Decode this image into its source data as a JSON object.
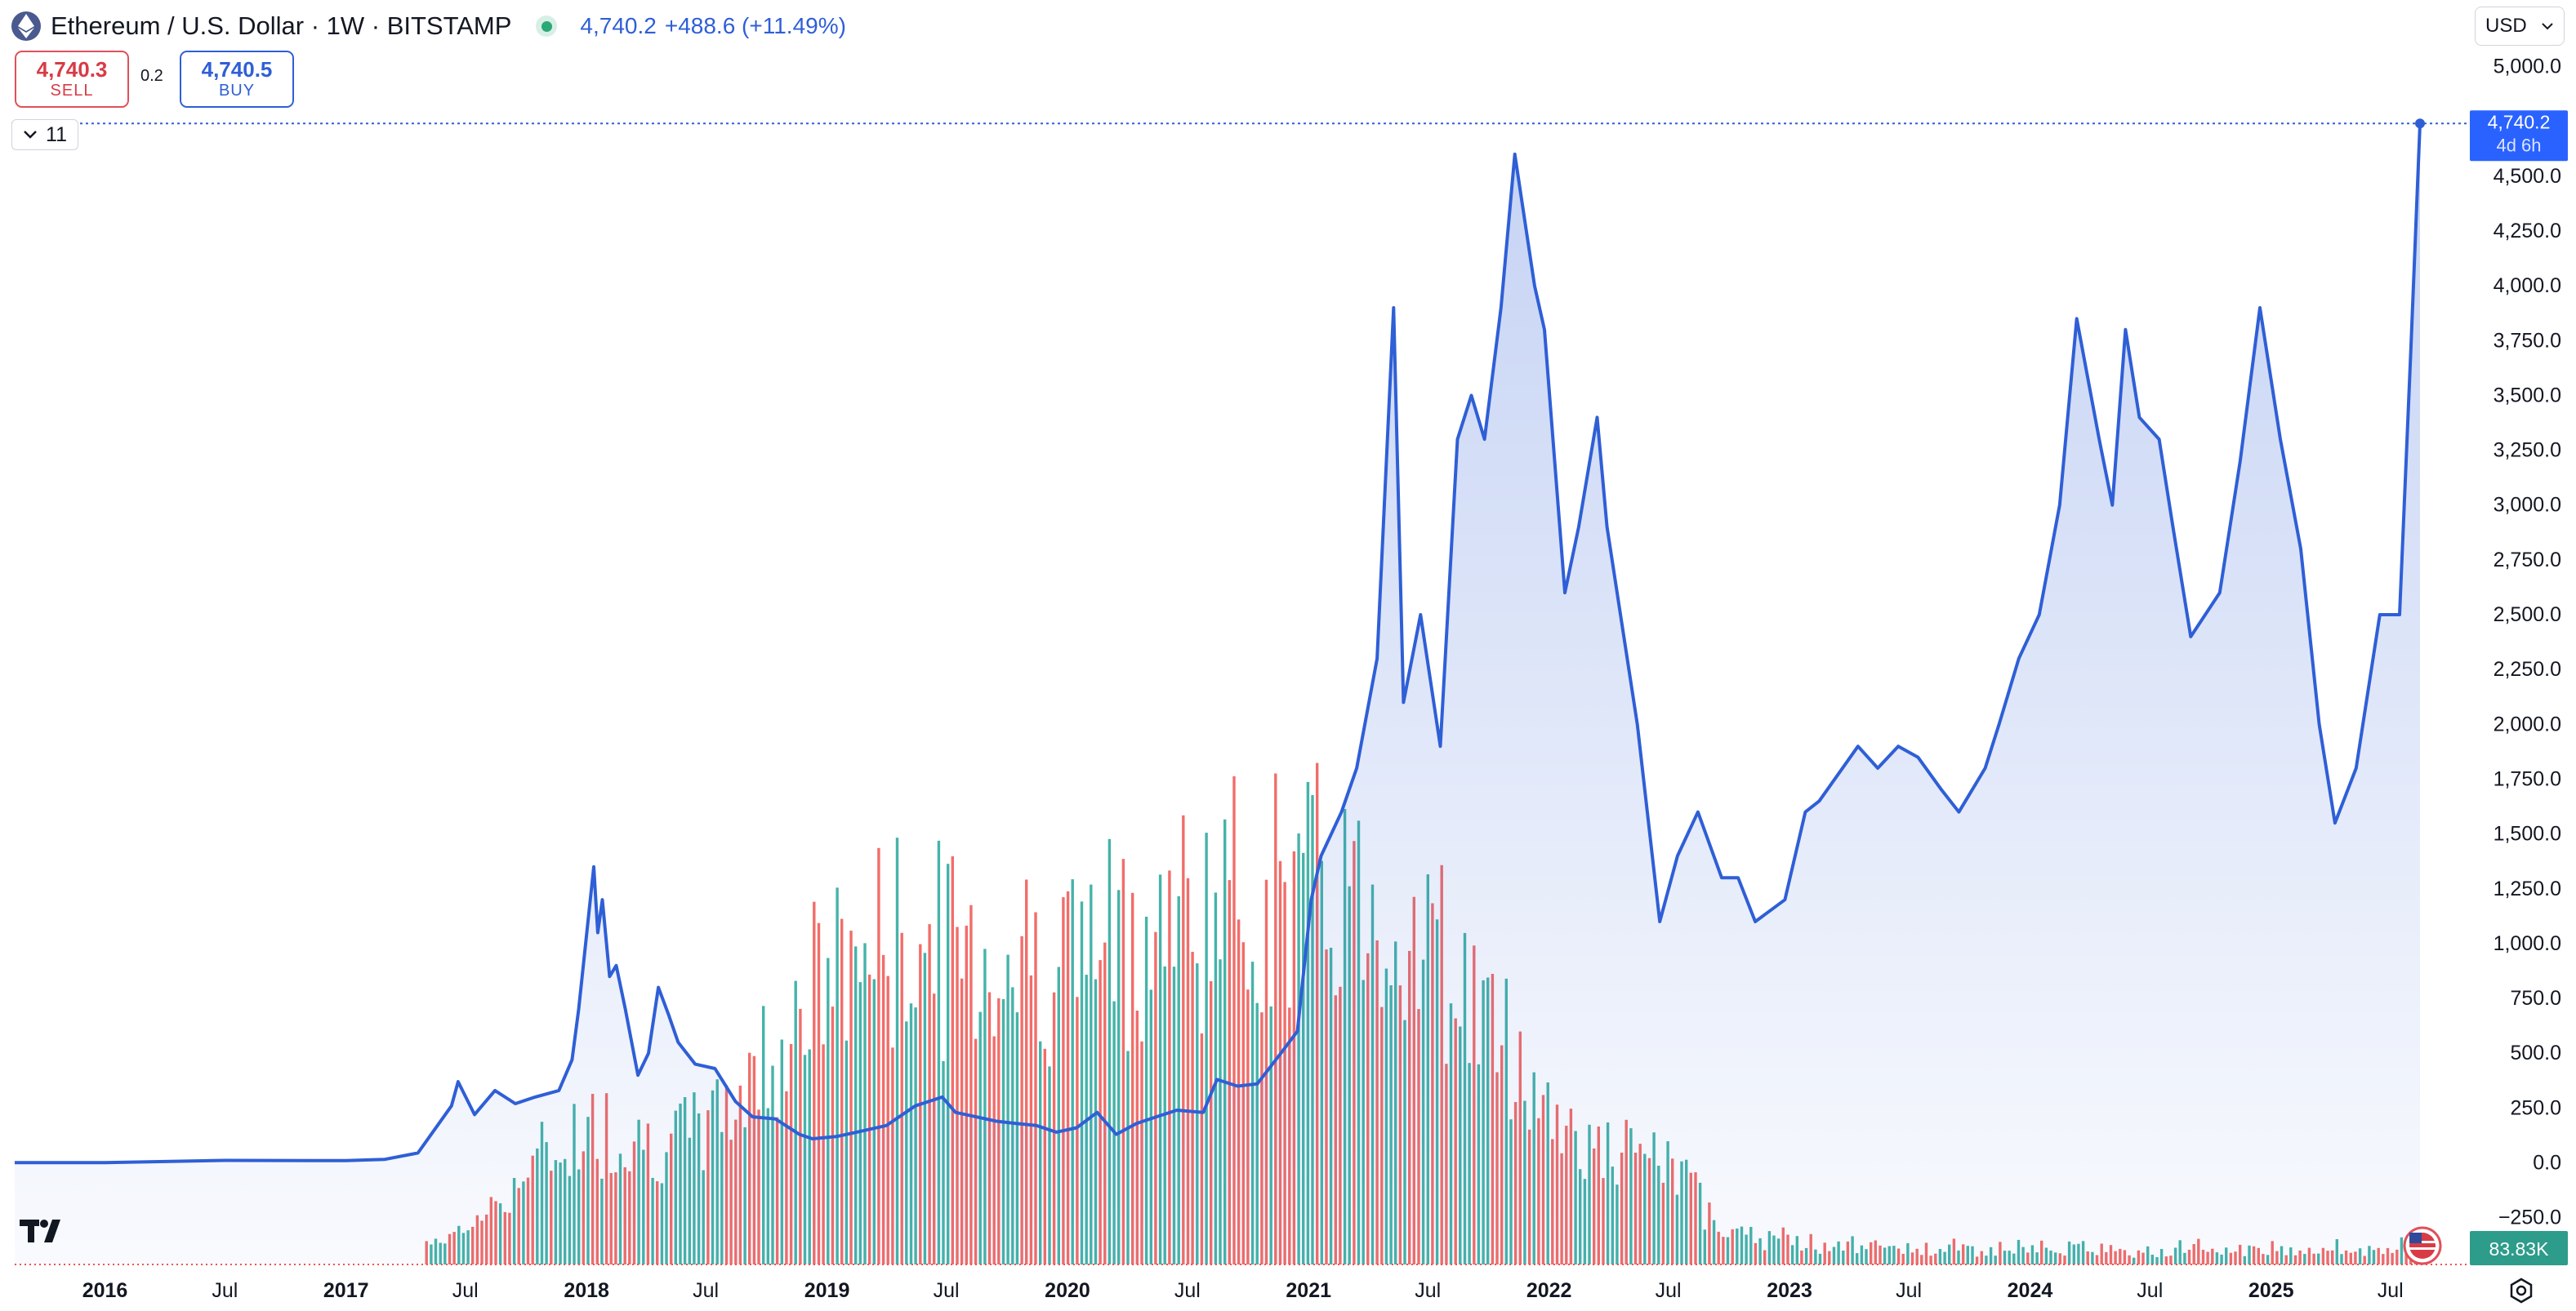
{
  "header": {
    "title": "Ethereum / U.S. Dollar · 1W · BITSTAMP",
    "last_price": "4,740.2",
    "change": "+488.6 (+11.49%)"
  },
  "trade": {
    "sell_price": "4,740.3",
    "sell_label": "SELL",
    "spread": "0.2",
    "buy_price": "4,740.5",
    "buy_label": "BUY"
  },
  "indicators_toggle": {
    "count": "11"
  },
  "currency_select": {
    "value": "USD"
  },
  "price_tag": {
    "value": "4,740.2",
    "countdown": "4d 6h"
  },
  "volume_tag": {
    "value": "83.83K"
  },
  "colors": {
    "line": "#2f5fd6",
    "up_volume": "#26a69a",
    "down_volume": "#ef5350",
    "accent": "#2962ff"
  },
  "icons": [
    "ethereum-icon",
    "market-open-icon",
    "chevron-down-icon",
    "tradingview-logo",
    "us-flag-icon",
    "settings-icon"
  ],
  "chart_data": {
    "type": "area",
    "x_axis_labels": [
      "2016",
      "Jul",
      "2017",
      "Jul",
      "2018",
      "Jul",
      "2019",
      "Jul",
      "2020",
      "Jul",
      "2021",
      "Jul",
      "2022",
      "Jul",
      "2023",
      "Jul",
      "2024",
      "Jul",
      "2025",
      "Jul"
    ],
    "y_axis_labels": [
      "5,000.0",
      "4,750.0",
      "4,500.0",
      "4,250.0",
      "4,000.0",
      "3,750.0",
      "3,500.0",
      "3,250.0",
      "3,000.0",
      "2,750.0",
      "2,500.0",
      "2,250.0",
      "2,000.0",
      "1,750.0",
      "1,500.0",
      "1,250.0",
      "1,000.0",
      "750.0",
      "500.0",
      "250.0",
      "0.0",
      "−250.0"
    ],
    "ylim": [
      -250,
      5000
    ],
    "last_value": 4740.2,
    "series": [
      {
        "x": [
          "2015-08-17",
          "2016-01-01",
          "2016-07-01",
          "2017-01-01",
          "2017-03-01",
          "2017-04-20",
          "2017-06-10",
          "2017-06-20",
          "2017-07-15",
          "2017-08-15",
          "2017-09-15",
          "2017-10-15",
          "2017-11-20",
          "2017-12-10",
          "2017-12-20",
          "2018-01-12",
          "2018-01-18",
          "2018-01-25",
          "2018-02-05",
          "2018-02-15",
          "2018-03-01",
          "2018-03-20",
          "2018-04-05",
          "2018-04-20",
          "2018-05-05",
          "2018-05-20",
          "2018-06-15",
          "2018-07-15",
          "2018-08-15",
          "2018-09-10",
          "2018-10-15",
          "2018-11-20",
          "2018-12-10",
          "2019-01-15",
          "2019-02-15",
          "2019-04-01",
          "2019-05-15",
          "2019-06-25",
          "2019-07-15",
          "2019-08-15",
          "2019-09-15",
          "2019-10-15",
          "2019-11-15",
          "2019-12-15",
          "2020-01-15",
          "2020-02-15",
          "2020-03-15",
          "2020-04-15",
          "2020-05-15",
          "2020-06-15",
          "2020-07-25",
          "2020-08-15",
          "2020-09-15",
          "2020-10-15",
          "2020-11-20",
          "2020-12-15",
          "2021-01-05",
          "2021-01-20",
          "2021-02-20",
          "2021-03-15",
          "2021-04-15",
          "2021-05-10",
          "2021-05-25",
          "2021-06-20",
          "2021-07-20",
          "2021-08-15",
          "2021-09-05",
          "2021-09-25",
          "2021-10-20",
          "2021-11-10",
          "2021-11-25",
          "2021-12-10",
          "2021-12-25",
          "2022-01-25",
          "2022-02-15",
          "2022-03-15",
          "2022-03-30",
          "2022-05-15",
          "2022-06-18",
          "2022-07-15",
          "2022-08-15",
          "2022-09-20",
          "2022-10-15",
          "2022-11-10",
          "2022-12-25",
          "2023-01-25",
          "2023-02-15",
          "2023-04-15",
          "2023-05-15",
          "2023-06-15",
          "2023-07-15",
          "2023-08-20",
          "2023-09-15",
          "2023-10-25",
          "2023-11-15",
          "2023-12-15",
          "2024-01-15",
          "2024-02-15",
          "2024-03-12",
          "2024-04-15",
          "2024-05-05",
          "2024-05-25",
          "2024-06-15",
          "2024-07-15",
          "2024-08-05",
          "2024-09-01",
          "2024-10-15",
          "2024-11-15",
          "2024-12-15",
          "2025-01-15",
          "2025-02-15",
          "2025-03-15",
          "2025-04-08",
          "2025-05-10",
          "2025-06-15",
          "2025-07-15",
          "2025-08-01",
          "2025-08-15"
        ],
        "y": [
          1,
          1,
          11,
          10,
          16,
          45,
          260,
          370,
          220,
          330,
          270,
          300,
          330,
          470,
          700,
          1350,
          1050,
          1200,
          850,
          900,
          700,
          400,
          500,
          800,
          680,
          550,
          450,
          430,
          280,
          210,
          200,
          130,
          110,
          120,
          140,
          170,
          260,
          300,
          230,
          210,
          190,
          180,
          170,
          140,
          160,
          230,
          130,
          180,
          210,
          240,
          230,
          380,
          350,
          360,
          500,
          600,
          1200,
          1400,
          1600,
          1800,
          2300,
          3900,
          2100,
          2500,
          1900,
          3300,
          3500,
          3300,
          3900,
          4600,
          4300,
          4000,
          3800,
          2600,
          2900,
          3400,
          2900,
          2000,
          1100,
          1400,
          1600,
          1300,
          1300,
          1100,
          1200,
          1600,
          1650,
          1900,
          1800,
          1900,
          1850,
          1700,
          1600,
          1800,
          2000,
          2300,
          2500,
          3000,
          3850,
          3300,
          3000,
          3800,
          3400,
          3300,
          2900,
          2400,
          2600,
          3200,
          3900,
          3300,
          2800,
          2000,
          1550,
          1800,
          2500,
          2500,
          3700,
          4740.2
        ]
      }
    ],
    "volume": {
      "unit": "K",
      "last_value": 83.83,
      "visible_range": [
        "2017-05-01",
        "2025-08-15"
      ]
    }
  }
}
